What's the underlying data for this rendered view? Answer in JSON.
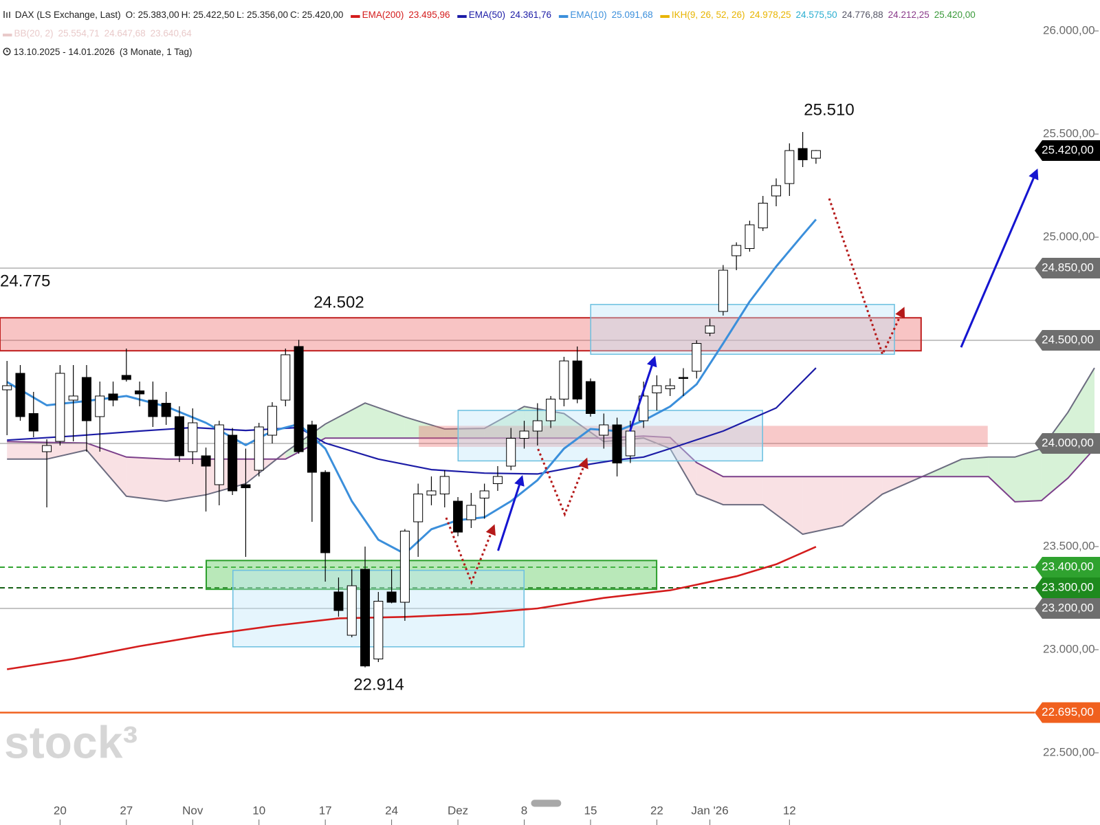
{
  "chart_data": {
    "type": "candlestick",
    "header": {
      "symbol": "DAX (LS Exchange, Last)",
      "ohlc": [
        "O: 25.383,00",
        "H: 25.422,50",
        "L: 25.356,00",
        "C: 25.420,00"
      ],
      "bb": {
        "name": "BB(20, 2)",
        "values": [
          "25.554,71",
          "24.647,68",
          "23.640,64"
        ]
      },
      "range": "13.10.2025 - 14.01.2026",
      "period": "(3 Monate, 1 Tag)"
    },
    "watermark": "stock³",
    "annotations": [
      "25.510",
      "24.775",
      "24.502",
      "22.914"
    ],
    "ylim": [
      22150,
      26150
    ],
    "yticks": [
      {
        "value": 26000,
        "label": "26.000,00"
      },
      {
        "value": 25500,
        "label": "25.500,00"
      },
      {
        "value": 25000,
        "label": "25.000,00"
      },
      {
        "value": 23500,
        "label": "23.500,00"
      },
      {
        "value": 23000,
        "label": "23.000,00"
      },
      {
        "value": 22500,
        "label": "22.500,00"
      }
    ],
    "categories": [
      null,
      null,
      null,
      null,
      "20",
      null,
      null,
      null,
      null,
      "27",
      null,
      null,
      null,
      null,
      "Nov",
      null,
      null,
      null,
      null,
      "10",
      null,
      null,
      null,
      null,
      "17",
      null,
      null,
      null,
      null,
      "24",
      null,
      null,
      null,
      null,
      "Dez",
      null,
      null,
      null,
      null,
      "8",
      null,
      null,
      null,
      null,
      "15",
      null,
      null,
      null,
      null,
      "22",
      null,
      null,
      null,
      "Jan '26",
      null,
      null,
      null,
      null,
      null,
      "12",
      null,
      null
    ],
    "up_color": "#ffffff",
    "down_color": "#000000",
    "wick_color": "#000000",
    "open": [
      24260,
      24340,
      24145,
      23960,
      24010,
      24210,
      24320,
      24130,
      24240,
      24330,
      24255,
      24210,
      24195,
      24130,
      23960,
      23940,
      23800,
      24040,
      23800,
      23870,
      24040,
      24210,
      24470,
      24090,
      23860,
      23280,
      23070,
      23390,
      22955,
      23280,
      23230,
      23620,
      23750,
      23755,
      23720,
      23630,
      23735,
      23805,
      23890,
      24025,
      24060,
      24110,
      24215,
      24400,
      24300,
      24040,
      24090,
      23940,
      24110,
      24245,
      24265,
      24320,
      24350,
      24535,
      24640,
      24910,
      24945,
      25045,
      25200,
      25260,
      25430,
      25383
    ],
    "high": [
      24400,
      24380,
      24250,
      24020,
      24380,
      24380,
      24380,
      24300,
      24300,
      24460,
      24300,
      24300,
      24250,
      24180,
      24170,
      23980,
      24110,
      24075,
      23975,
      24100,
      24200,
      24460,
      24502,
      24110,
      23870,
      23350,
      23390,
      23500,
      23280,
      23390,
      23585,
      23805,
      23840,
      23870,
      23740,
      23760,
      23805,
      23890,
      24075,
      24110,
      24195,
      24230,
      24420,
      24470,
      24315,
      24145,
      24125,
      24110,
      24300,
      24330,
      24315,
      24365,
      24500,
      24605,
      24865,
      24975,
      25080,
      25200,
      25285,
      25455,
      25510,
      25422.5
    ],
    "low": [
      24040,
      24110,
      24030,
      23690,
      23990,
      24010,
      23960,
      23960,
      24180,
      24300,
      24180,
      24080,
      24090,
      23910,
      23900,
      23670,
      23700,
      23750,
      23450,
      23840,
      24000,
      24180,
      23950,
      23620,
      23330,
      23160,
      23060,
      22914,
      22940,
      23225,
      23140,
      23450,
      23700,
      23690,
      23550,
      23590,
      23635,
      23770,
      23870,
      23975,
      23990,
      24075,
      24180,
      24195,
      24130,
      23975,
      23840,
      23905,
      24075,
      24160,
      24230,
      24230,
      24315,
      24520,
      24620,
      24840,
      24930,
      25030,
      25150,
      25200,
      25340,
      25356
    ],
    "close": [
      24280,
      24130,
      24060,
      23990,
      24340,
      24230,
      24110,
      24230,
      24210,
      24310,
      24240,
      24130,
      24130,
      23940,
      24100,
      23890,
      24090,
      23770,
      23785,
      24080,
      24180,
      24430,
      23960,
      23860,
      23470,
      23190,
      23310,
      22921,
      23235,
      23230,
      23575,
      23755,
      23770,
      23840,
      23570,
      23700,
      23770,
      23840,
      24025,
      24060,
      24110,
      24215,
      24400,
      24215,
      24145,
      24090,
      23905,
      24060,
      24230,
      24280,
      24280,
      24315,
      24485,
      24570,
      24840,
      24960,
      25060,
      25165,
      25250,
      25420,
      25375,
      25420
    ],
    "series": [
      {
        "name": "EMA(200)",
        "color": "#d41c1c",
        "width": 2.6,
        "last_label": "23.495,96",
        "x": [
          0,
          5,
          10,
          15,
          20,
          25,
          30,
          35,
          40,
          45,
          50,
          55,
          58,
          61
        ],
        "values": [
          22905,
          22955,
          23017,
          23071,
          23115,
          23152,
          23159,
          23173,
          23200,
          23251,
          23288,
          23356,
          23414,
          23499
        ]
      },
      {
        "name": "EMA(50)",
        "color": "#1c1ca6",
        "width": 2.2,
        "last_label": "24.361,76",
        "x": [
          0,
          5,
          10,
          14,
          18,
          22,
          24,
          28,
          32,
          36,
          40,
          44,
          46,
          48,
          50,
          54,
          58,
          61
        ],
        "values": [
          24016,
          24036,
          24060,
          24077,
          24063,
          24077,
          24002,
          23924,
          23873,
          23856,
          23852,
          23900,
          23920,
          23934,
          23975,
          24060,
          24172,
          24366
        ]
      },
      {
        "name": "EMA(10)",
        "color": "#3b8fdb",
        "width": 3,
        "last_label": "25.091,68",
        "x": [
          0,
          3,
          6,
          9,
          12,
          15,
          18,
          20,
          22,
          24,
          26,
          28,
          30,
          32,
          34,
          36,
          38,
          40,
          42,
          44,
          46,
          48,
          50,
          52,
          54,
          56,
          58,
          60,
          61
        ],
        "values": [
          24298,
          24185,
          24206,
          24230,
          24179,
          24100,
          23992,
          24060,
          24094,
          23975,
          23720,
          23533,
          23465,
          23584,
          23628,
          23642,
          23720,
          23822,
          23975,
          24070,
          24060,
          24111,
          24179,
          24287,
          24485,
          24688,
          24858,
          25011,
          25086
        ]
      }
    ],
    "ichimoku": {
      "name": "IKH(9, 26, 52, 26)",
      "color": "#e8b400",
      "value_labels": [
        {
          "label": "24.978,25",
          "color": "#e8b400"
        },
        {
          "label": "24.575,50",
          "color": "#2aaed0"
        },
        {
          "label": "24.776,88",
          "color": "#555566"
        },
        {
          "label": "24.212,25",
          "color": "#8a3a8a"
        },
        {
          "label": "25.420,00",
          "color": "#3a9a3a"
        }
      ],
      "span_a_color": "#6c6c80",
      "span_b_color": "#7b3f8a",
      "fill_up": "rgba(150,220,150,0.38)",
      "fill_down": "rgba(240,175,185,0.38)",
      "x": [
        0,
        3,
        6,
        9,
        12,
        15,
        18,
        21,
        24,
        27,
        30,
        33,
        36,
        39,
        42,
        45,
        48,
        50,
        52,
        54,
        57,
        60,
        63,
        66,
        69,
        72,
        74,
        76,
        78,
        80,
        82
      ],
      "span_a": [
        23924,
        23924,
        23968,
        23744,
        23720,
        23751,
        23805,
        23958,
        24094,
        24196,
        24128,
        24070,
        24073,
        24179,
        24145,
        24009,
        24026,
        23975,
        23754,
        23703,
        23703,
        23560,
        23601,
        23754,
        23839,
        23924,
        23934,
        23934,
        23975,
        24151,
        24366
      ],
      "span_b": [
        24009,
        24005,
        24002,
        23934,
        23924,
        23924,
        23924,
        23924,
        24026,
        24026,
        24026,
        24026,
        24026,
        24026,
        24026,
        24026,
        24036,
        24029,
        23907,
        23839,
        23839,
        23839,
        23839,
        23839,
        23839,
        23839,
        23839,
        23717,
        23723,
        23832,
        23975
      ]
    },
    "levels": [
      {
        "value": 25420,
        "label": "25.420,00",
        "color": "#000000",
        "line": false
      },
      {
        "value": 24850,
        "label": "24.850,00",
        "color": "#6e6e6e",
        "line": true,
        "line_color": "#8a8a8a",
        "dashed": false
      },
      {
        "value": 24500,
        "label": "24.500,00",
        "color": "#6e6e6e",
        "line": true,
        "line_color": "#8a8a8a",
        "dashed": false
      },
      {
        "value": 24000,
        "label": "24.000,00",
        "color": "#6e6e6e",
        "line": true,
        "line_color": "#8a8a8a",
        "dashed": false
      },
      {
        "value": 23400,
        "label": "23.400,00",
        "color": "#2fa22f",
        "line": true,
        "line_color": "#2fa22f",
        "dashed": true
      },
      {
        "value": 23300,
        "label": "23.300,00",
        "color": "#1e8a1e",
        "line": true,
        "line_color": "#145f14",
        "dashed": true
      },
      {
        "value": 23200,
        "label": "23.200,00",
        "color": "#6e6e6e",
        "line": true,
        "line_color": "#8a8a8a",
        "dashed": false
      },
      {
        "value": 22695,
        "label": "22.695,00",
        "color": "#f0601e",
        "line": true,
        "line_color": "#f0601e",
        "dashed": false
      }
    ]
  }
}
